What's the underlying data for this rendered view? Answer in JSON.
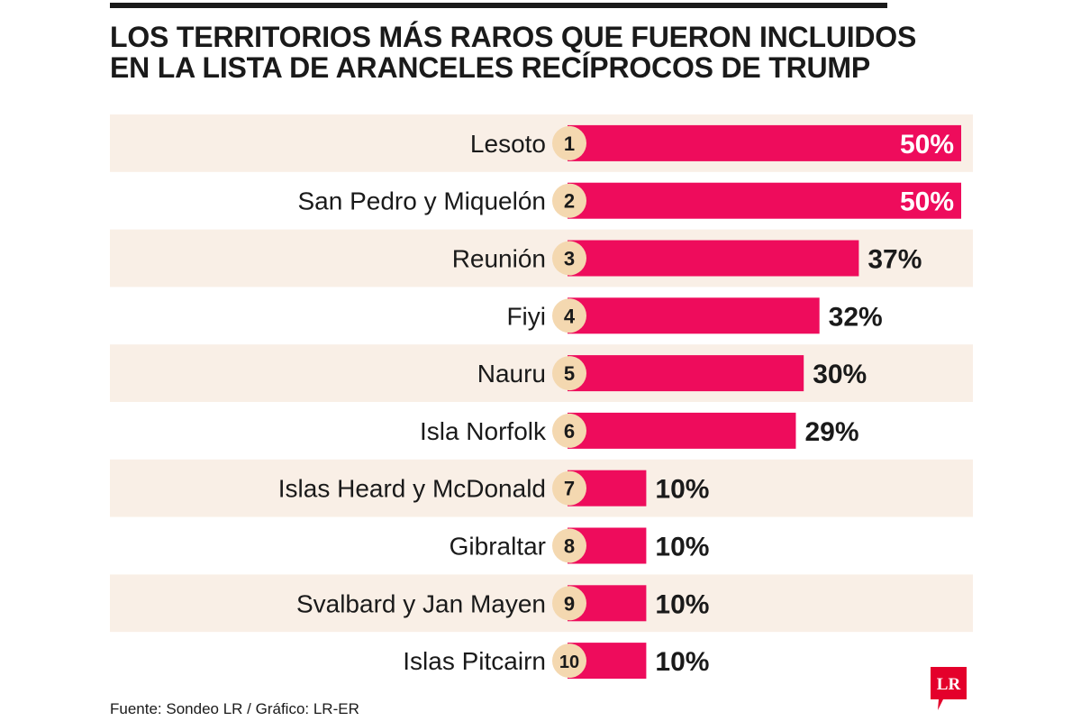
{
  "header": {
    "title_line1": "LOS TERRITORIOS MÁS RAROS QUE FUERON INCLUIDOS",
    "title_line2": "EN LA LISTA DE ARANCELES RECÍPROCOS DE TRUMP"
  },
  "footer": {
    "source": "Fuente: Sondeo LR / Gráfico: LR-ER",
    "logo_text": "LR"
  },
  "colors": {
    "bar": "#ee0c5c",
    "band": "#f9efe6",
    "badge": "#f4d8b0",
    "logo": "#e4002b",
    "text": "#1a1a1a"
  },
  "chart_data": {
    "type": "bar",
    "orientation": "horizontal",
    "title": "LOS TERRITORIOS MÁS RAROS QUE FUERON INCLUIDOS EN LA LISTA DE ARANCELES RECÍPROCOS DE TRUMP",
    "categories": [
      "Lesoto",
      "San Pedro y Miquelón",
      "Reunión",
      "Fiyi",
      "Nauru",
      "Isla Norfolk",
      "Islas Heard y McDonald",
      "Gibraltar",
      "Svalbard y Jan Mayen",
      "Islas Pitcairn"
    ],
    "ranks": [
      "1",
      "2",
      "3",
      "4",
      "5",
      "6",
      "7",
      "8",
      "9",
      "10"
    ],
    "values": [
      50,
      50,
      37,
      32,
      30,
      29,
      10,
      10,
      10,
      10
    ],
    "value_labels": [
      "50%",
      "50%",
      "37%",
      "32%",
      "30%",
      "29%",
      "10%",
      "10%",
      "10%",
      "10%"
    ],
    "unit": "%",
    "xlim": [
      0,
      50
    ],
    "grid": false,
    "legend": "none"
  }
}
